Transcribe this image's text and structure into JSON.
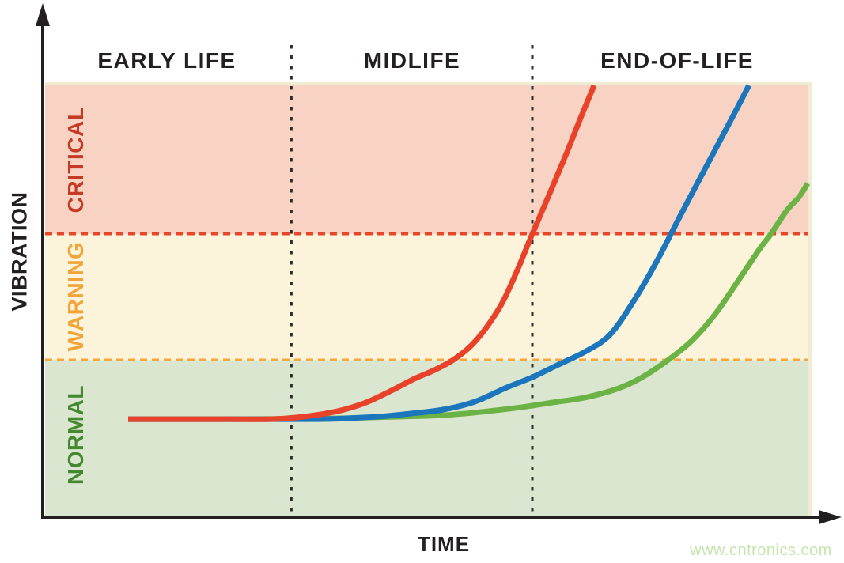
{
  "phases": [
    {
      "label": "EARLY LIFE"
    },
    {
      "label": "MIDLIFE"
    },
    {
      "label": "END-OF-LIFE"
    }
  ],
  "zones": [
    {
      "label": "CRITICAL",
      "text_color": "#c43b25",
      "fill": "#f8d3c3",
      "boundary_color": "#e8462b"
    },
    {
      "label": "WARNING",
      "text_color": "#f2a439",
      "fill": "#fbf4da",
      "boundary_color": "#f6a83a"
    },
    {
      "label": "NORMAL",
      "text_color": "#44892f",
      "fill": "#dbe6d1"
    }
  ],
  "axes": {
    "x_label": "TIME",
    "y_label": "VIBRATION",
    "color": "#231f20"
  },
  "watermark": {
    "text": "www.cntronics.com",
    "color": "#c6e5ad"
  },
  "separator_color": "#2e2d2c",
  "edge_trim_color": "#f0ebd3",
  "chart_data": {
    "type": "line",
    "title": "",
    "xlabel": "TIME",
    "ylabel": "VIBRATION",
    "x_range": [
      0,
      100
    ],
    "y_range": [
      0,
      100
    ],
    "grid": false,
    "legend": "none",
    "axis_ticks": "none",
    "phase_bands": [
      {
        "name": "EARLY LIFE",
        "x": [
          0,
          32.3
        ]
      },
      {
        "name": "MIDLIFE",
        "x": [
          32.3,
          63.9
        ]
      },
      {
        "name": "END-OF-LIFE",
        "x": [
          63.9,
          100
        ]
      }
    ],
    "threshold_zones": [
      {
        "name": "NORMAL",
        "y": [
          0,
          36.4
        ]
      },
      {
        "name": "WARNING",
        "y": [
          36.4,
          65.6
        ]
      },
      {
        "name": "CRITICAL",
        "y": [
          65.6,
          100
        ]
      }
    ],
    "series": [
      {
        "name": "fast-degradation-curve",
        "color": "#e8432a",
        "points": [
          [
            10.9,
            22.7
          ],
          [
            21.1,
            22.7
          ],
          [
            29.4,
            22.7
          ],
          [
            33.0,
            23.1
          ],
          [
            36.1,
            23.8
          ],
          [
            39.2,
            24.9
          ],
          [
            42.3,
            26.7
          ],
          [
            45.4,
            29.3
          ],
          [
            48.5,
            32.1
          ],
          [
            51.1,
            34.1
          ],
          [
            53.5,
            36.4
          ],
          [
            55.8,
            39.6
          ],
          [
            57.9,
            44.0
          ],
          [
            60.0,
            49.8
          ],
          [
            62.0,
            57.5
          ],
          [
            63.9,
            65.6
          ],
          [
            66.2,
            75.1
          ],
          [
            68.3,
            83.9
          ],
          [
            70.1,
            91.9
          ],
          [
            72.0,
            100
          ]
        ]
      },
      {
        "name": "medium-degradation-curve",
        "color": "#1b76bc",
        "points": [
          [
            10.9,
            22.7
          ],
          [
            23.1,
            22.7
          ],
          [
            35.6,
            22.7
          ],
          [
            39.7,
            22.9
          ],
          [
            43.9,
            23.3
          ],
          [
            48.0,
            24.0
          ],
          [
            52.2,
            24.9
          ],
          [
            56.3,
            26.7
          ],
          [
            60.5,
            30.0
          ],
          [
            63.9,
            32.4
          ],
          [
            66.7,
            34.8
          ],
          [
            68.6,
            36.4
          ],
          [
            70.8,
            38.3
          ],
          [
            74.0,
            42.1
          ],
          [
            77.1,
            49.8
          ],
          [
            80.2,
            59.2
          ],
          [
            83.3,
            69.8
          ],
          [
            86.4,
            80.2
          ],
          [
            89.5,
            90.5
          ],
          [
            92.3,
            100
          ]
        ]
      },
      {
        "name": "slow-degradation-curve",
        "color": "#6cb345",
        "points": [
          [
            10.9,
            22.7
          ],
          [
            25.2,
            22.7
          ],
          [
            38.7,
            22.9
          ],
          [
            42.8,
            23.1
          ],
          [
            47.0,
            23.3
          ],
          [
            52.2,
            23.6
          ],
          [
            57.4,
            24.4
          ],
          [
            62.6,
            25.5
          ],
          [
            66.7,
            26.6
          ],
          [
            70.8,
            27.7
          ],
          [
            75.0,
            29.7
          ],
          [
            78.1,
            32.2
          ],
          [
            81.7,
            36.4
          ],
          [
            84.9,
            41.0
          ],
          [
            88.0,
            47.3
          ],
          [
            91.1,
            55.3
          ],
          [
            93.7,
            62.1
          ],
          [
            95.2,
            65.6
          ],
          [
            97.3,
            71.1
          ],
          [
            98.9,
            74.2
          ],
          [
            100,
            77.3
          ]
        ]
      }
    ]
  }
}
